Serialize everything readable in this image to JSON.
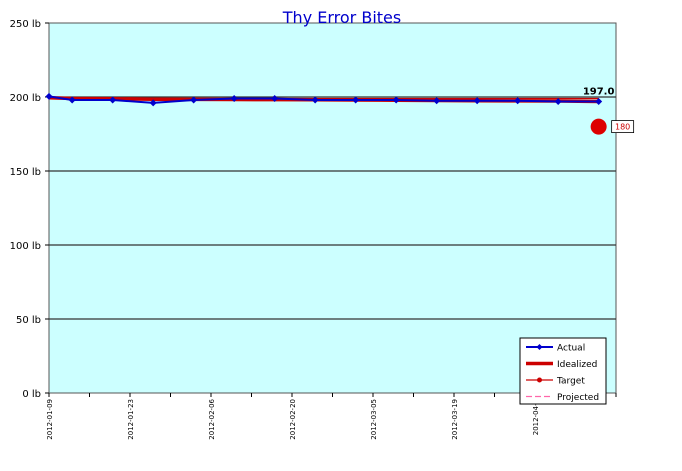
{
  "chart_data": {
    "type": "line",
    "title": "Thy Error Bites",
    "y_unit": "lb",
    "ylim": [
      0,
      250
    ],
    "y_ticks": [
      0,
      50,
      100,
      150,
      200,
      250
    ],
    "y_tick_labels": [
      "0 lb",
      "50 lb",
      "100 lb",
      "150 lb",
      "200 lb",
      "250 lb"
    ],
    "x_range": [
      "2012-01-09",
      "2012-04-16"
    ],
    "x_tick_labels": [
      "2012-01-09",
      "2012-01-23",
      "2012-02-06",
      "2012-02-20",
      "2012-03-05",
      "2012-03-19",
      "2012-04-0"
    ],
    "x_ticks": [
      "2012-01-09",
      "2012-01-23",
      "2012-02-06",
      "2012-02-20",
      "2012-03-05",
      "2012-03-19",
      "2012-04-02"
    ],
    "grid": true,
    "legend_position": "bottom-right",
    "colors": {
      "plot_bg": "#ccffff",
      "title": "#0000cc",
      "actual": "#0000cc",
      "idealized": "#cc0000",
      "target": "#cc0000",
      "projected": "#ff66aa",
      "grid": "#333333"
    },
    "series": [
      {
        "name": "Actual",
        "x": [
          "2012-01-09",
          "2012-01-13",
          "2012-01-20",
          "2012-01-27",
          "2012-02-03",
          "2012-02-10",
          "2012-02-17",
          "2012-02-24",
          "2012-03-02",
          "2012-03-09",
          "2012-03-16",
          "2012-03-23",
          "2012-03-30",
          "2012-04-06",
          "2012-04-13"
        ],
        "values": [
          200.4,
          198,
          198,
          196,
          198,
          199,
          199,
          198,
          198,
          198,
          197.5,
          197.5,
          197.5,
          197,
          197
        ]
      },
      {
        "name": "Idealized",
        "x": [
          "2012-01-09",
          "2012-01-13",
          "2012-01-20",
          "2012-01-27",
          "2012-02-03",
          "2012-02-10",
          "2012-02-17",
          "2012-02-24",
          "2012-03-02",
          "2012-03-09",
          "2012-03-16",
          "2012-03-23",
          "2012-03-30",
          "2012-04-06",
          "2012-04-13"
        ],
        "values": [
          199.5,
          199,
          198.8,
          198.5,
          198.4,
          198.3,
          198.2,
          198.1,
          198,
          197.8,
          197.6,
          197.5,
          197.4,
          197.3,
          197
        ]
      },
      {
        "name": "Target",
        "x": [
          "2012-01-09",
          "2012-04-13"
        ],
        "values": [
          199,
          199
        ]
      },
      {
        "name": "Projected",
        "x": [],
        "values": []
      }
    ],
    "annotations": [
      {
        "text": "197.0",
        "x": "2012-04-13",
        "y": 197
      }
    ],
    "goal_marker": {
      "label": "180",
      "x": "2012-04-13",
      "y": 180
    }
  }
}
